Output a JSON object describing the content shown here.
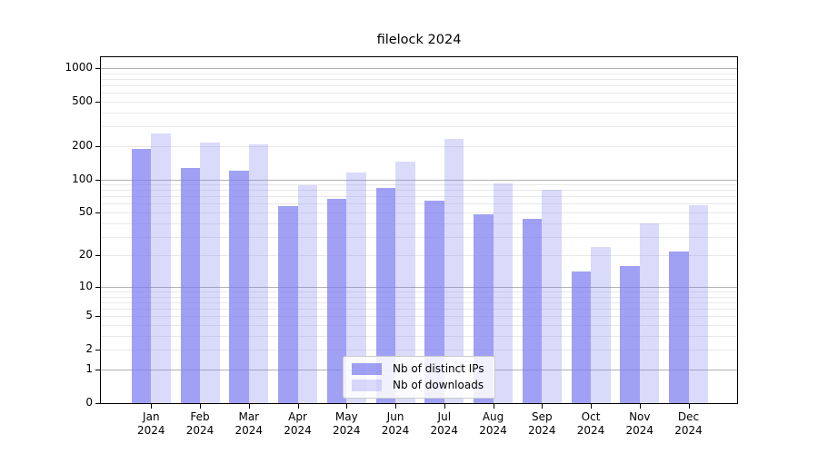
{
  "title": "filelock 2024",
  "chart_data": {
    "type": "bar",
    "title": "filelock 2024",
    "y_scale": "log1p",
    "grid": true,
    "legend_position": "lower center",
    "categories": [
      "Jan 2024",
      "Feb 2024",
      "Mar 2024",
      "Apr 2024",
      "May 2024",
      "Jun 2024",
      "Jul 2024",
      "Aug 2024",
      "Sep 2024",
      "Oct 2024",
      "Nov 2024",
      "Dec 2024"
    ],
    "series": [
      {
        "name": "Nb of distinct IPs",
        "color": "rgba(123,123,240,0.72)",
        "values": [
          188,
          127,
          120,
          57,
          67,
          83,
          64,
          48,
          44,
          14,
          16,
          22
        ]
      },
      {
        "name": "Nb of downloads",
        "color": "rgba(123,123,240,0.28)",
        "values": [
          260,
          215,
          205,
          89,
          115,
          144,
          230,
          92,
          81,
          24,
          40,
          58
        ]
      }
    ],
    "y_ticks": [
      0,
      1,
      2,
      5,
      10,
      20,
      50,
      100,
      200,
      500,
      1000
    ],
    "ylim": [
      0,
      1250
    ],
    "colors": {
      "grid_major": "#b2b2b2",
      "grid_minor": "#e9e9e9",
      "axis": "#000000",
      "legend_border": "#cccccc"
    }
  }
}
